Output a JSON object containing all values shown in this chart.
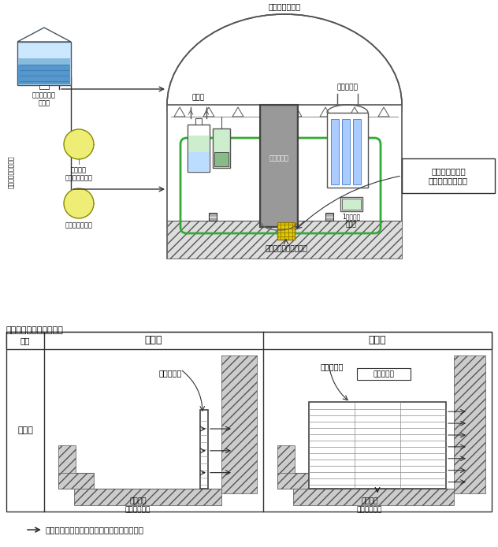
{
  "bg_color": "#ffffff",
  "title_comparison": "スクリーン取替前後比較",
  "table_headers": [
    "項目",
    "取替前",
    "取替後"
  ],
  "table_row_label": "概念図",
  "label_before_screen": "スクリーン",
  "label_after_screen": "スクリーン",
  "label_area_expand": "面積の拡大",
  "label_sump_before": "栽納容器\n再循環サンプ",
  "label_sump_after": "栽納容器\n再循環サンプ",
  "legend_text": "：栽納容器再循環サンプへ流入する水の流れ",
  "top_label_containment": "原子炉栽納容器",
  "label_pressurizer": "加圧器",
  "label_reactor": "原子炉容器",
  "label_steam_gen": "譒気発生器",
  "label_spray_pump": "栽納容器\nスプレイポンプ",
  "label_decay_pump": "余熱除去ポンプ",
  "label_coolant_pump": "1次冷却材\nポンプ",
  "label_fuel_tank": "燃料茶替用水\nタンク",
  "label_eccs": "非常用炉心冷却系統",
  "label_containment_sump": "栽納容器再循環サンプ",
  "label_recirculation_screen": "栽納容器再循環\nサンプスクリーン"
}
